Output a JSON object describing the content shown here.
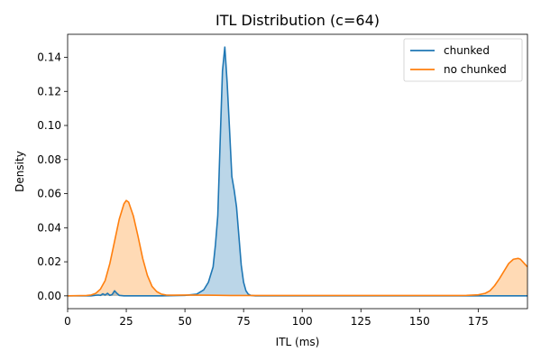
{
  "chart_data": {
    "type": "area",
    "title": "ITL Distribution (c=64)",
    "xlabel": "ITL (ms)",
    "ylabel": "Density",
    "xlim": [
      0,
      196
    ],
    "ylim": [
      -0.0075,
      0.1535
    ],
    "xticks": [
      0,
      25,
      50,
      75,
      100,
      125,
      150,
      175
    ],
    "yticks": [
      0.0,
      0.02,
      0.04,
      0.06,
      0.08,
      0.1,
      0.12,
      0.14
    ],
    "ytick_labels": [
      "0.00",
      "0.02",
      "0.04",
      "0.06",
      "0.08",
      "0.10",
      "0.12",
      "0.14"
    ],
    "grid": false,
    "legend_position": "top-right",
    "series": [
      {
        "name": "chunked",
        "color": "#1f77b4",
        "fill_color": "#1f77b4",
        "x": [
          0,
          10,
          13,
          14,
          15,
          16,
          17,
          18,
          19,
          20,
          21,
          22,
          24,
          30,
          40,
          50,
          55,
          58,
          60,
          62,
          63,
          64,
          65,
          66,
          67,
          68,
          69,
          70,
          71,
          72,
          73,
          74,
          75,
          76,
          77,
          78,
          80,
          90,
          120,
          150,
          175,
          196
        ],
        "values": [
          0,
          0,
          0.0005,
          0.0003,
          0.0012,
          0.0005,
          0.0015,
          0.0003,
          0.0008,
          0.003,
          0.0015,
          0.0003,
          0,
          0,
          0,
          0.0003,
          0.001,
          0.0035,
          0.008,
          0.017,
          0.03,
          0.047,
          0.09,
          0.132,
          0.146,
          0.125,
          0.098,
          0.07,
          0.062,
          0.052,
          0.035,
          0.018,
          0.008,
          0.003,
          0.001,
          0.0003,
          0,
          0,
          0,
          0,
          0,
          0
        ]
      },
      {
        "name": "no chunked",
        "color": "#ff7f0e",
        "fill_color": "#ffbb78",
        "x": [
          0,
          8,
          10,
          12,
          14,
          16,
          18,
          20,
          22,
          24,
          25,
          26,
          28,
          30,
          32,
          34,
          36,
          38,
          40,
          42,
          45,
          50,
          60,
          70,
          80,
          100,
          125,
          150,
          165,
          170,
          175,
          178,
          180,
          182,
          184,
          186,
          188,
          190,
          192,
          193,
          194,
          195,
          196
        ],
        "values": [
          0,
          0.0002,
          0.0005,
          0.0015,
          0.004,
          0.009,
          0.019,
          0.032,
          0.045,
          0.054,
          0.056,
          0.055,
          0.047,
          0.035,
          0.022,
          0.012,
          0.0055,
          0.0025,
          0.001,
          0.0005,
          0.0004,
          0.0005,
          0.0004,
          0.0002,
          0.0002,
          0.0002,
          0.0002,
          0.0002,
          0.0002,
          0.0003,
          0.0006,
          0.0015,
          0.003,
          0.006,
          0.01,
          0.0145,
          0.019,
          0.0215,
          0.022,
          0.0215,
          0.02,
          0.0185,
          0.017
        ]
      }
    ]
  }
}
